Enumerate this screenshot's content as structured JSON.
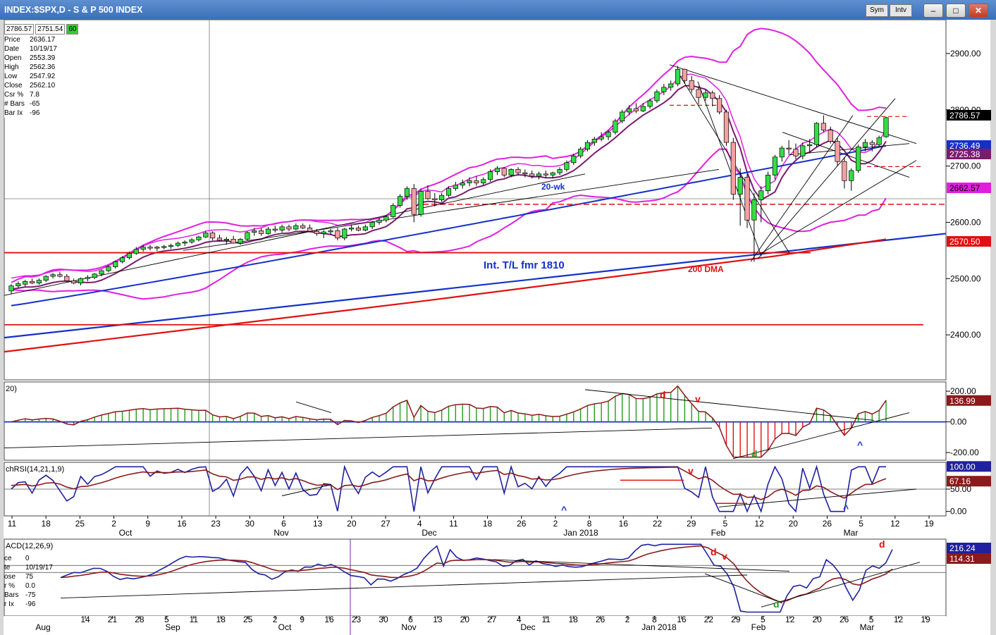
{
  "window": {
    "title": "INDEX:$SPX,D - S & P 500 INDEX",
    "sym_label": "Sym",
    "intv_label": "Intv"
  },
  "info_panel": {
    "h_value": "2786.57",
    "l_value": "2751.54",
    "change": "60",
    "rows": [
      {
        "k": "Price",
        "v": "2636.17"
      },
      {
        "k": "Date",
        "v": "10/19/17"
      },
      {
        "k": "Open",
        "v": "2553.39"
      },
      {
        "k": "High",
        "v": "2562.36"
      },
      {
        "k": "Low",
        "v": "2547.92"
      },
      {
        "k": "Close",
        "v": "2562.10"
      },
      {
        "k": "Csr %",
        "v": "7.8"
      },
      {
        "k": "# Bars",
        "v": "-65"
      },
      {
        "k": "Bar Ix",
        "v": "-96"
      }
    ]
  },
  "macd_info": {
    "rows": [
      {
        "k": "ce",
        "v": "0"
      },
      {
        "k": "te",
        "v": "10/19/17"
      },
      {
        "k": "ose",
        "v": "75"
      },
      {
        "k": "r %",
        "v": "0.0"
      },
      {
        "k": "Bars",
        "v": "-75"
      },
      {
        "k": "r Ix",
        "v": "-96"
      }
    ]
  },
  "colors": {
    "bull": "#33dd44",
    "bear": "#f4a0a0",
    "blue": "#1530c8",
    "red": "#e01010",
    "magenta": "#e020e0",
    "purple": "#7a1c6e",
    "navy": "#2020a0",
    "maroon": "#8b1a1a",
    "green_osc": "#229922"
  },
  "chart_data": [
    {
      "type": "candlestick",
      "panel": "price",
      "ylim": [
        2320,
        2960
      ],
      "y_ticks": [
        "2900.00",
        "2800.00",
        "2700.00",
        "2600.00",
        "2500.00",
        "2400.00"
      ],
      "x_labels_top": [
        "11",
        "18",
        "25",
        "2",
        "9",
        "16",
        "23",
        "30",
        "6",
        "13",
        "20",
        "27",
        "4",
        "11",
        "18",
        "26",
        "2",
        "8",
        "16",
        "22",
        "29",
        "5",
        "12",
        "20",
        "26",
        "5",
        "12",
        "19"
      ],
      "x_month_labels": [
        "Oct",
        "Nov",
        "Dec",
        "Jan 2018",
        "Feb",
        "Mar"
      ],
      "annotations": [
        "20-wk",
        "Int. T/L fmr 1810",
        "200 DMA"
      ],
      "right_labels": [
        {
          "text": "2786.57",
          "style": "black"
        },
        {
          "text": "2736.49",
          "style": "blue"
        },
        {
          "text": "2725.38",
          "style": "purple"
        },
        {
          "text": "2662.57",
          "style": "magenta"
        },
        {
          "text": "2570.50",
          "style": "red"
        }
      ],
      "ohlc_approx": [
        [
          2478,
          2490,
          2472,
          2487
        ],
        [
          2487,
          2495,
          2483,
          2491
        ],
        [
          2490,
          2498,
          2486,
          2495
        ],
        [
          2495,
          2500,
          2490,
          2492
        ],
        [
          2492,
          2500,
          2489,
          2497
        ],
        [
          2497,
          2506,
          2494,
          2504
        ],
        [
          2504,
          2510,
          2500,
          2507
        ],
        [
          2507,
          2512,
          2502,
          2504
        ],
        [
          2504,
          2508,
          2494,
          2496
        ],
        [
          2496,
          2500,
          2490,
          2492
        ],
        [
          2492,
          2502,
          2488,
          2500
        ],
        [
          2500,
          2506,
          2495,
          2502
        ],
        [
          2502,
          2510,
          2499,
          2508
        ],
        [
          2508,
          2516,
          2504,
          2514
        ],
        [
          2514,
          2524,
          2511,
          2521
        ],
        [
          2521,
          2532,
          2518,
          2530
        ],
        [
          2530,
          2540,
          2527,
          2537
        ],
        [
          2537,
          2548,
          2534,
          2545
        ],
        [
          2545,
          2556,
          2542,
          2552
        ],
        [
          2552,
          2560,
          2548,
          2556
        ],
        [
          2556,
          2560,
          2550,
          2554
        ],
        [
          2554,
          2558,
          2549,
          2556
        ],
        [
          2556,
          2560,
          2552,
          2557
        ],
        [
          2557,
          2562,
          2553,
          2559
        ],
        [
          2559,
          2566,
          2556,
          2563
        ],
        [
          2563,
          2568,
          2558,
          2565
        ],
        [
          2565,
          2572,
          2562,
          2569
        ],
        [
          2569,
          2576,
          2566,
          2574
        ],
        [
          2574,
          2584,
          2572,
          2581
        ],
        [
          2581,
          2584,
          2568,
          2572
        ],
        [
          2572,
          2578,
          2566,
          2568
        ],
        [
          2568,
          2574,
          2560,
          2570
        ],
        [
          2570,
          2576,
          2562,
          2563
        ],
        [
          2563,
          2572,
          2560,
          2570
        ],
        [
          2570,
          2584,
          2568,
          2582
        ],
        [
          2582,
          2590,
          2576,
          2585
        ],
        [
          2585,
          2590,
          2576,
          2580
        ],
        [
          2580,
          2592,
          2578,
          2588
        ],
        [
          2588,
          2594,
          2582,
          2586
        ],
        [
          2586,
          2596,
          2582,
          2592
        ],
        [
          2592,
          2596,
          2584,
          2588
        ],
        [
          2588,
          2598,
          2586,
          2594
        ],
        [
          2594,
          2598,
          2588,
          2590
        ],
        [
          2590,
          2596,
          2582,
          2584
        ],
        [
          2584,
          2588,
          2576,
          2580
        ],
        [
          2580,
          2586,
          2572,
          2583
        ],
        [
          2583,
          2588,
          2578,
          2585
        ],
        [
          2585,
          2590,
          2568,
          2572
        ],
        [
          2572,
          2590,
          2568,
          2588
        ],
        [
          2588,
          2596,
          2584,
          2590
        ],
        [
          2590,
          2594,
          2584,
          2586
        ],
        [
          2586,
          2596,
          2584,
          2592
        ],
        [
          2592,
          2602,
          2588,
          2600
        ],
        [
          2600,
          2608,
          2596,
          2604
        ],
        [
          2604,
          2612,
          2600,
          2610
        ],
        [
          2610,
          2634,
          2608,
          2630
        ],
        [
          2630,
          2650,
          2626,
          2646
        ],
        [
          2646,
          2664,
          2640,
          2660
        ],
        [
          2660,
          2668,
          2600,
          2614
        ],
        [
          2614,
          2660,
          2610,
          2655
        ],
        [
          2655,
          2666,
          2640,
          2642
        ],
        [
          2642,
          2652,
          2628,
          2640
        ],
        [
          2640,
          2652,
          2636,
          2648
        ],
        [
          2648,
          2664,
          2645,
          2660
        ],
        [
          2660,
          2672,
          2656,
          2666
        ],
        [
          2666,
          2676,
          2660,
          2670
        ],
        [
          2670,
          2680,
          2664,
          2674
        ],
        [
          2674,
          2682,
          2665,
          2670
        ],
        [
          2670,
          2680,
          2666,
          2676
        ],
        [
          2676,
          2694,
          2672,
          2690
        ],
        [
          2690,
          2700,
          2684,
          2696
        ],
        [
          2696,
          2698,
          2680,
          2684
        ],
        [
          2684,
          2696,
          2680,
          2694
        ],
        [
          2694,
          2698,
          2684,
          2688
        ],
        [
          2688,
          2694,
          2680,
          2686
        ],
        [
          2686,
          2692,
          2678,
          2682
        ],
        [
          2682,
          2690,
          2676,
          2686
        ],
        [
          2686,
          2692,
          2680,
          2684
        ],
        [
          2684,
          2690,
          2678,
          2688
        ],
        [
          2688,
          2698,
          2684,
          2694
        ],
        [
          2694,
          2710,
          2690,
          2706
        ],
        [
          2706,
          2722,
          2702,
          2718
        ],
        [
          2718,
          2734,
          2714,
          2730
        ],
        [
          2730,
          2746,
          2726,
          2742
        ],
        [
          2742,
          2752,
          2736,
          2748
        ],
        [
          2748,
          2760,
          2744,
          2752
        ],
        [
          2752,
          2764,
          2746,
          2760
        ],
        [
          2760,
          2784,
          2756,
          2780
        ],
        [
          2780,
          2800,
          2776,
          2796
        ],
        [
          2796,
          2808,
          2790,
          2802
        ],
        [
          2802,
          2812,
          2794,
          2798
        ],
        [
          2798,
          2812,
          2796,
          2806
        ],
        [
          2806,
          2820,
          2802,
          2816
        ],
        [
          2816,
          2836,
          2812,
          2832
        ],
        [
          2832,
          2846,
          2826,
          2840
        ],
        [
          2840,
          2852,
          2834,
          2846
        ],
        [
          2846,
          2878,
          2842,
          2872
        ],
        [
          2872,
          2873,
          2846,
          2852
        ],
        [
          2852,
          2860,
          2830,
          2836
        ],
        [
          2836,
          2842,
          2810,
          2822
        ],
        [
          2822,
          2836,
          2816,
          2830
        ],
        [
          2830,
          2834,
          2806,
          2820
        ],
        [
          2820,
          2826,
          2792,
          2796
        ],
        [
          2796,
          2800,
          2736,
          2742
        ],
        [
          2742,
          2750,
          2640,
          2650
        ],
        [
          2650,
          2696,
          2594,
          2680
        ],
        [
          2680,
          2686,
          2590,
          2604
        ],
        [
          2604,
          2652,
          2530,
          2640
        ],
        [
          2640,
          2664,
          2600,
          2656
        ],
        [
          2656,
          2690,
          2650,
          2684
        ],
        [
          2684,
          2720,
          2676,
          2716
        ],
        [
          2716,
          2736,
          2708,
          2732
        ],
        [
          2732,
          2746,
          2720,
          2730
        ],
        [
          2730,
          2740,
          2712,
          2718
        ],
        [
          2718,
          2742,
          2712,
          2736
        ],
        [
          2736,
          2748,
          2724,
          2738
        ],
        [
          2738,
          2778,
          2734,
          2776
        ],
        [
          2776,
          2790,
          2760,
          2764
        ],
        [
          2764,
          2770,
          2740,
          2744
        ],
        [
          2744,
          2750,
          2700,
          2708
        ],
        [
          2708,
          2716,
          2660,
          2674
        ],
        [
          2674,
          2696,
          2656,
          2692
        ],
        [
          2692,
          2738,
          2688,
          2734
        ],
        [
          2734,
          2748,
          2726,
          2742
        ],
        [
          2742,
          2746,
          2726,
          2738
        ],
        [
          2738,
          2754,
          2734,
          2750
        ],
        [
          2752,
          2788,
          2750,
          2786
        ]
      ]
    },
    {
      "type": "bar",
      "panel": "oscillator",
      "label": "20)",
      "ylim": [
        -250,
        260
      ],
      "y_ticks": [
        "200.00",
        "0.00",
        "-200.00"
      ],
      "right_labels": [
        {
          "text": "136.99",
          "style": "maroon"
        }
      ],
      "annotations": [
        "d",
        "v",
        "d",
        "^"
      ]
    },
    {
      "type": "line",
      "panel": "rsi",
      "label": "chRSI(14,21,1,9)",
      "ylim": [
        -10,
        110
      ],
      "y_ticks": [
        "50.00",
        "0.00"
      ],
      "right_labels": [
        {
          "text": "100.00",
          "style": "navy"
        },
        {
          "text": "67.16",
          "style": "maroon"
        }
      ],
      "x_labels": [
        "11",
        "18",
        "25",
        "2",
        "9",
        "16",
        "23",
        "30",
        "6",
        "13",
        "20",
        "27",
        "4",
        "11",
        "18",
        "26",
        "2",
        "8",
        "16",
        "22",
        "29",
        "5",
        "12",
        "20",
        "26",
        "5",
        "12",
        "19"
      ],
      "x_month_labels": [
        "Oct",
        "Nov",
        "Dec",
        "Jan 2018",
        "Feb",
        "Mar"
      ],
      "annotations": [
        "^",
        "v",
        "^"
      ]
    },
    {
      "type": "line",
      "panel": "macd",
      "label": "ACD(12,26,9)",
      "ylim": [
        -300,
        300
      ],
      "right_labels": [
        {
          "text": "216.24",
          "style": "navy"
        },
        {
          "text": "114.31",
          "style": "maroon"
        }
      ],
      "x_labels": [
        "14",
        "21",
        "28",
        "5",
        "11",
        "18",
        "25",
        "2",
        "9",
        "16",
        "23",
        "30",
        "6",
        "13",
        "20",
        "27",
        "4",
        "11",
        "18",
        "26",
        "2",
        "8",
        "16",
        "22",
        "29",
        "5",
        "12",
        "20",
        "26",
        "5",
        "12",
        "19"
      ],
      "x_month_labels": [
        "Aug",
        "Sep",
        "Oct",
        "Nov",
        "Dec",
        "Jan 2018",
        "Feb",
        "Mar"
      ],
      "annotations": [
        "d",
        "v",
        "d",
        "d"
      ]
    }
  ]
}
